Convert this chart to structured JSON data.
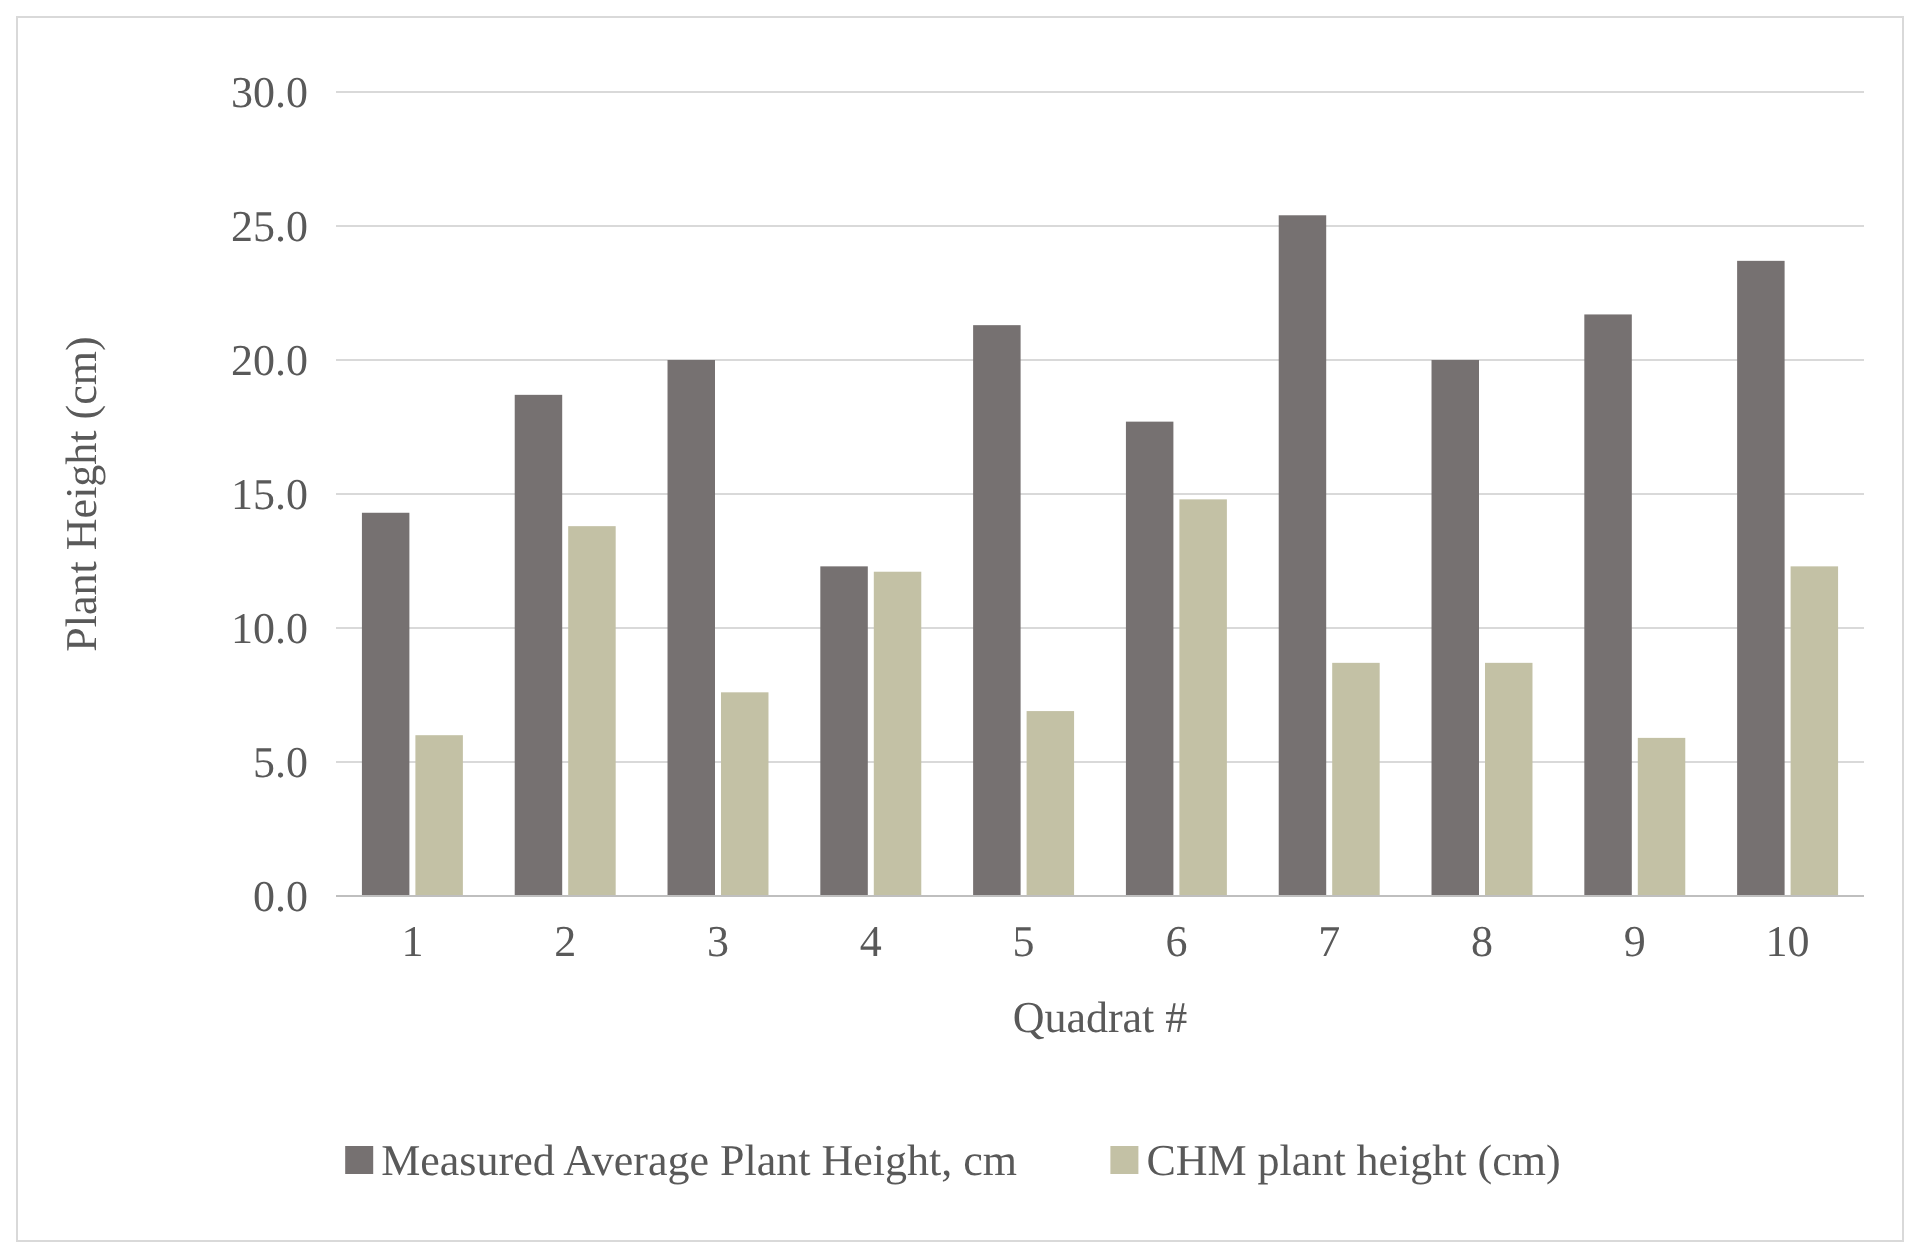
{
  "chart_data": {
    "type": "bar",
    "xlabel": "Quadrat #",
    "ylabel": "Plant Height (cm)",
    "categories": [
      "1",
      "2",
      "3",
      "4",
      "5",
      "6",
      "7",
      "8",
      "9",
      "10"
    ],
    "series": [
      {
        "name": "Measured Average Plant Height, cm",
        "color": "#767171",
        "values": [
          14.3,
          18.7,
          20.0,
          12.3,
          21.3,
          17.7,
          25.4,
          20.0,
          21.7,
          23.7
        ]
      },
      {
        "name": "CHM plant height (cm)",
        "color": "#c3c1a5",
        "values": [
          6.0,
          13.8,
          7.6,
          12.1,
          6.9,
          14.8,
          8.7,
          8.7,
          5.9,
          12.3
        ]
      }
    ],
    "ylim": [
      0,
      30
    ],
    "yticks": [
      {
        "value": 0,
        "label": "0.0"
      },
      {
        "value": 5,
        "label": "5.0"
      },
      {
        "value": 10,
        "label": "10.0"
      },
      {
        "value": 15,
        "label": "15.0"
      },
      {
        "value": 20,
        "label": "20.0"
      },
      {
        "value": 25,
        "label": "25.0"
      },
      {
        "value": 30,
        "label": "30.0"
      }
    ],
    "grid": "y",
    "legend": "bottom"
  }
}
